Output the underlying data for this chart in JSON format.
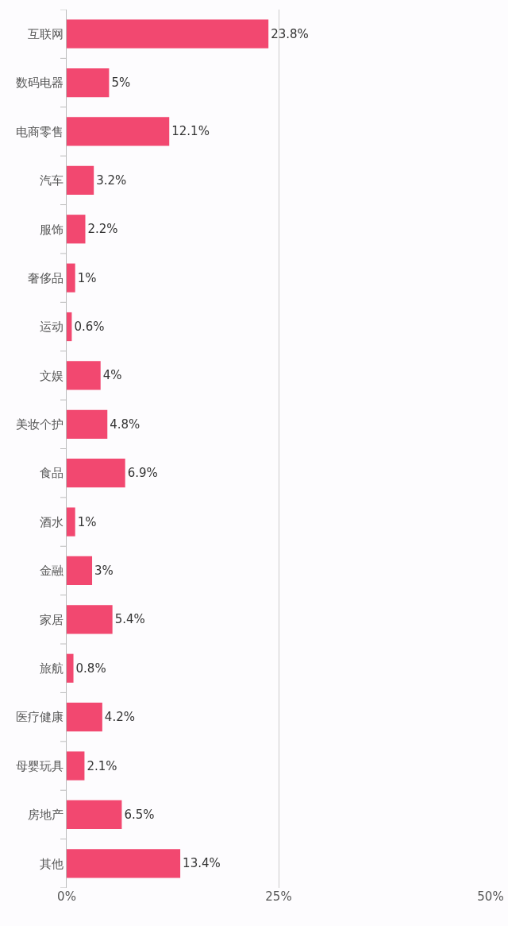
{
  "chart_data": {
    "type": "bar",
    "orientation": "horizontal",
    "categories": [
      "互联网",
      "数码电器",
      "电商零售",
      "汽车",
      "服饰",
      "奢侈品",
      "运动",
      "文娱",
      "美妆个护",
      "食品",
      "酒水",
      "金融",
      "家居",
      "旅航",
      "医疗健康",
      "母婴玩具",
      "房地产",
      "其他"
    ],
    "values": [
      23.8,
      5,
      12.1,
      3.2,
      2.2,
      1,
      0.6,
      4,
      4.8,
      6.9,
      1,
      3,
      5.4,
      0.8,
      4.2,
      2.1,
      6.5,
      13.4
    ],
    "value_labels": [
      "23.8%",
      "5%",
      "12.1%",
      "3.2%",
      "2.2%",
      "1%",
      "0.6%",
      "4%",
      "4.8%",
      "6.9%",
      "1%",
      "3%",
      "5.4%",
      "0.8%",
      "4.2%",
      "2.1%",
      "6.5%",
      "13.4%"
    ],
    "color": "#f24870",
    "xlim": [
      0,
      50
    ],
    "xticks": [
      {
        "value": 0,
        "label": "0%"
      },
      {
        "value": 25,
        "label": "25%"
      },
      {
        "value": 50,
        "label": "50%"
      }
    ],
    "grid": "x"
  }
}
